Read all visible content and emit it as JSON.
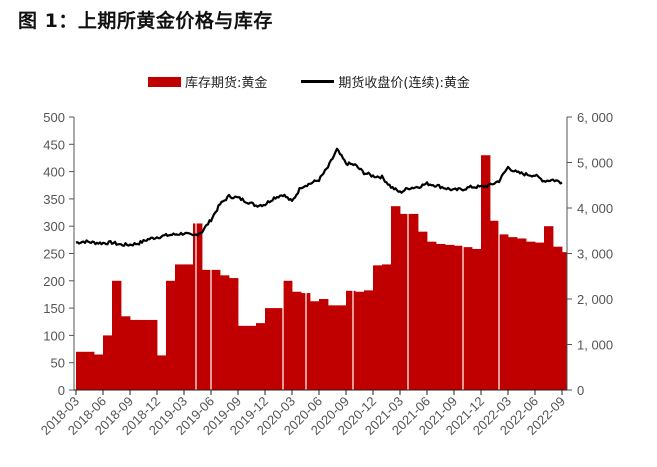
{
  "title": "图 1：上期所黄金价格与库存",
  "legend": {
    "bar_label": "库存期货:黄金",
    "line_label": "期货收盘价(连续):黄金"
  },
  "colors": {
    "bar": "#c00000",
    "line": "#000000",
    "axis": "#555555"
  },
  "chart_data": {
    "type": "bar+line",
    "title": "图 1：上期所黄金价格与库存",
    "left_axis": {
      "label": "",
      "ylim": [
        0,
        500
      ],
      "ticks": [
        "0",
        "50",
        "100",
        "150",
        "200",
        "250",
        "300",
        "350",
        "400",
        "450",
        "500"
      ],
      "applies_to": "期货收盘价(连续):黄金"
    },
    "right_axis": {
      "label": "",
      "ylim": [
        0,
        6000
      ],
      "ticks": [
        "0",
        "1, 000",
        "2, 000",
        "3, 000",
        "4, 000",
        "5, 000",
        "6, 000"
      ],
      "applies_to": "库存期货:黄金"
    },
    "x_ticks": [
      "2018-03",
      "2018-06",
      "2018-09",
      "2018-12",
      "2019-03",
      "2019-06",
      "2019-09",
      "2019-12",
      "2020-03",
      "2020-06",
      "2020-09",
      "2020-12",
      "2021-03",
      "2021-06",
      "2021-09",
      "2021-12",
      "2022-03",
      "2022-06",
      "2022-09"
    ],
    "grid": false,
    "legend_position": "top",
    "series": [
      {
        "name": "库存期货:黄金",
        "type": "bar",
        "axis": "right",
        "x": [
          "2018-03",
          "2018-04",
          "2018-05",
          "2018-06",
          "2018-07",
          "2018-08",
          "2018-09",
          "2018-10",
          "2018-11",
          "2018-12",
          "2019-01",
          "2019-02",
          "2019-03",
          "2019-04",
          "2019-05",
          "2019-06",
          "2019-07",
          "2019-08",
          "2019-09",
          "2019-10",
          "2019-11",
          "2019-12",
          "2020-01",
          "2020-02",
          "2020-03",
          "2020-04",
          "2020-05",
          "2020-06",
          "2020-07",
          "2020-08",
          "2020-09",
          "2020-10",
          "2020-11",
          "2020-12",
          "2021-01",
          "2021-02",
          "2021-03",
          "2021-04",
          "2021-05",
          "2021-06",
          "2021-07",
          "2021-08",
          "2021-09",
          "2021-10",
          "2021-11",
          "2021-12",
          "2022-01",
          "2022-02",
          "2022-03",
          "2022-04",
          "2022-05",
          "2022-06",
          "2022-07",
          "2022-08",
          "2022-09"
        ],
        "values": [
          840,
          840,
          780,
          1200,
          2400,
          1620,
          1540,
          1540,
          1540,
          760,
          2400,
          2760,
          2760,
          3660,
          2640,
          2640,
          2520,
          2460,
          1410,
          1410,
          1470,
          1800,
          1800,
          2400,
          2160,
          2130,
          1950,
          2000,
          1860,
          1860,
          2180,
          2160,
          2190,
          2740,
          2760,
          4040,
          3870,
          3870,
          3480,
          3260,
          3210,
          3190,
          3170,
          3140,
          3100,
          5160,
          3720,
          3420,
          3360,
          3330,
          3260,
          3240,
          3600,
          3150,
          3030
        ]
      },
      {
        "name": "期货收盘价(连续):黄金",
        "type": "line",
        "axis": "left",
        "x": [
          "2018-03",
          "2018-04",
          "2018-05",
          "2018-06",
          "2018-07",
          "2018-08",
          "2018-09",
          "2018-10",
          "2018-11",
          "2018-12",
          "2019-01",
          "2019-02",
          "2019-03",
          "2019-04",
          "2019-05",
          "2019-06",
          "2019-07",
          "2019-08",
          "2019-09",
          "2019-10",
          "2019-11",
          "2019-12",
          "2020-01",
          "2020-02",
          "2020-03",
          "2020-04",
          "2020-05",
          "2020-06",
          "2020-07",
          "2020-08",
          "2020-09",
          "2020-10",
          "2020-11",
          "2020-12",
          "2021-01",
          "2021-02",
          "2021-03",
          "2021-04",
          "2021-05",
          "2021-06",
          "2021-07",
          "2021-08",
          "2021-09",
          "2021-10",
          "2021-11",
          "2021-12",
          "2022-01",
          "2022-02",
          "2022-03",
          "2022-04",
          "2022-05",
          "2022-06",
          "2022-07",
          "2022-08",
          "2022-09"
        ],
        "values": [
          270,
          272,
          270,
          269,
          270,
          266,
          266,
          269,
          276,
          280,
          283,
          285,
          287,
          282,
          290,
          312,
          340,
          355,
          352,
          345,
          338,
          340,
          352,
          358,
          345,
          372,
          378,
          385,
          408,
          440,
          415,
          412,
          398,
          392,
          390,
          372,
          362,
          370,
          372,
          378,
          375,
          370,
          366,
          368,
          372,
          372,
          375,
          383,
          408,
          398,
          395,
          393,
          383,
          385,
          380
        ]
      }
    ]
  }
}
